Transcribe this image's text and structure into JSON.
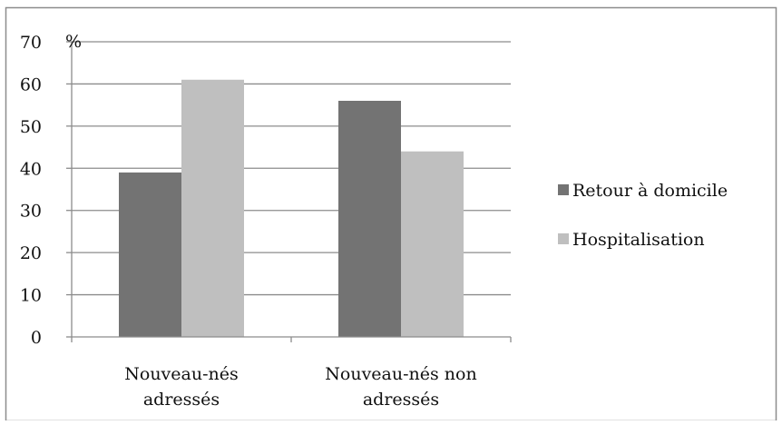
{
  "chart_data": {
    "type": "bar",
    "unit_label": "%",
    "categories": [
      [
        "Nouveau-nés",
        "adressés"
      ],
      [
        "Nouveau-nés non",
        "adressés"
      ]
    ],
    "series": [
      {
        "name": "Retour à domicile",
        "color": "#737373",
        "values": [
          39,
          56
        ]
      },
      {
        "name": "Hospitalisation",
        "color": "#bfbfbf",
        "values": [
          61,
          44
        ]
      }
    ],
    "ylim": [
      0,
      70
    ],
    "yticks": [
      "0",
      "10",
      "20",
      "30",
      "40",
      "50",
      "60",
      "70"
    ],
    "grid": true,
    "legend_position": "right"
  }
}
